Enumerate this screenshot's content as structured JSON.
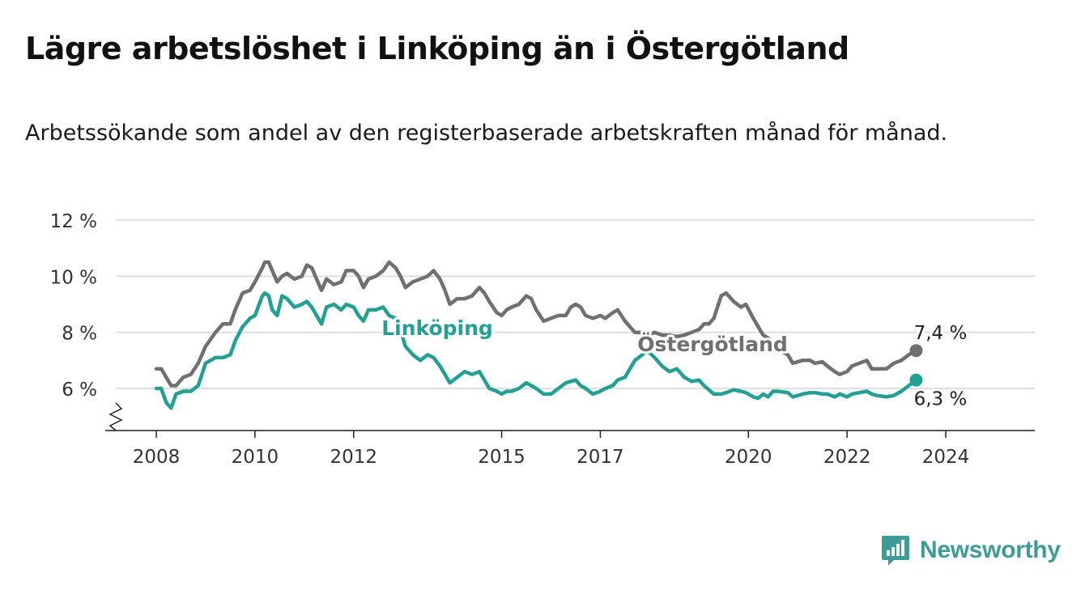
{
  "header": {
    "title": "Lägre arbetslöshet i Linköping än i Östergötland",
    "subtitle": "Arbetssökande som andel av den registerbaserade arbetskraften månad för månad."
  },
  "brand": {
    "name": "Newsworthy",
    "logo_icon": "bar-chart-speech-bubble-icon",
    "color": "#3f9b95"
  },
  "chart_data": {
    "type": "line",
    "x_unit": "year",
    "xlim": [
      2007.9,
      2025.0
    ],
    "ylim": [
      5,
      12
    ],
    "y_axis_break": true,
    "grid": true,
    "y_ticks": [
      {
        "value": 6,
        "label": "6 %"
      },
      {
        "value": 8,
        "label": "8 %"
      },
      {
        "value": 10,
        "label": "10 %"
      },
      {
        "value": 12,
        "label": "12 %"
      }
    ],
    "x_ticks": [
      {
        "value": 2008,
        "label": "2008"
      },
      {
        "value": 2010,
        "label": "2010"
      },
      {
        "value": 2012,
        "label": "2012"
      },
      {
        "value": 2015,
        "label": "2015"
      },
      {
        "value": 2017,
        "label": "2017"
      },
      {
        "value": 2020,
        "label": "2020"
      },
      {
        "value": 2022,
        "label": "2022"
      },
      {
        "value": 2024,
        "label": "2024"
      }
    ],
    "series": [
      {
        "name": "Östergötland",
        "color": "#707070",
        "end_value_label": "7,4 %",
        "points": [
          [
            2008.0,
            6.7
          ],
          [
            2008.1,
            6.7
          ],
          [
            2008.2,
            6.4
          ],
          [
            2008.3,
            6.1
          ],
          [
            2008.4,
            6.1
          ],
          [
            2008.55,
            6.4
          ],
          [
            2008.7,
            6.5
          ],
          [
            2008.85,
            6.9
          ],
          [
            2009.0,
            7.5
          ],
          [
            2009.2,
            8.0
          ],
          [
            2009.35,
            8.3
          ],
          [
            2009.5,
            8.3
          ],
          [
            2009.6,
            8.8
          ],
          [
            2009.75,
            9.4
          ],
          [
            2009.9,
            9.5
          ],
          [
            2010.0,
            9.8
          ],
          [
            2010.15,
            10.3
          ],
          [
            2010.2,
            10.5
          ],
          [
            2010.28,
            10.5
          ],
          [
            2010.35,
            10.2
          ],
          [
            2010.45,
            9.8
          ],
          [
            2010.55,
            10.0
          ],
          [
            2010.65,
            10.1
          ],
          [
            2010.8,
            9.9
          ],
          [
            2010.95,
            10.0
          ],
          [
            2011.05,
            10.4
          ],
          [
            2011.15,
            10.3
          ],
          [
            2011.25,
            9.9
          ],
          [
            2011.35,
            9.5
          ],
          [
            2011.45,
            9.9
          ],
          [
            2011.6,
            9.7
          ],
          [
            2011.75,
            9.8
          ],
          [
            2011.85,
            10.2
          ],
          [
            2012.0,
            10.2
          ],
          [
            2012.1,
            10.0
          ],
          [
            2012.2,
            9.6
          ],
          [
            2012.3,
            9.9
          ],
          [
            2012.45,
            10.0
          ],
          [
            2012.6,
            10.2
          ],
          [
            2012.72,
            10.5
          ],
          [
            2012.85,
            10.3
          ],
          [
            2012.95,
            10.0
          ],
          [
            2013.05,
            9.6
          ],
          [
            2013.2,
            9.8
          ],
          [
            2013.35,
            9.9
          ],
          [
            2013.5,
            10.0
          ],
          [
            2013.62,
            10.2
          ],
          [
            2013.75,
            9.9
          ],
          [
            2013.85,
            9.5
          ],
          [
            2013.95,
            9.0
          ],
          [
            2014.1,
            9.2
          ],
          [
            2014.25,
            9.2
          ],
          [
            2014.4,
            9.3
          ],
          [
            2014.55,
            9.6
          ],
          [
            2014.65,
            9.4
          ],
          [
            2014.75,
            9.1
          ],
          [
            2014.9,
            8.7
          ],
          [
            2015.0,
            8.6
          ],
          [
            2015.1,
            8.8
          ],
          [
            2015.2,
            8.9
          ],
          [
            2015.35,
            9.0
          ],
          [
            2015.5,
            9.3
          ],
          [
            2015.6,
            9.2
          ],
          [
            2015.7,
            8.8
          ],
          [
            2015.85,
            8.4
          ],
          [
            2016.0,
            8.5
          ],
          [
            2016.15,
            8.6
          ],
          [
            2016.3,
            8.6
          ],
          [
            2016.4,
            8.9
          ],
          [
            2016.5,
            9.0
          ],
          [
            2016.6,
            8.9
          ],
          [
            2016.7,
            8.6
          ],
          [
            2016.85,
            8.5
          ],
          [
            2017.0,
            8.6
          ],
          [
            2017.1,
            8.5
          ],
          [
            2017.25,
            8.7
          ],
          [
            2017.35,
            8.8
          ],
          [
            2017.5,
            8.4
          ],
          [
            2017.6,
            8.2
          ],
          [
            2017.7,
            8.0
          ],
          [
            2017.85,
            8.0
          ],
          [
            2017.95,
            7.9
          ],
          [
            2018.1,
            8.0
          ],
          [
            2018.25,
            7.9
          ],
          [
            2018.4,
            7.9
          ],
          [
            2018.55,
            7.85
          ],
          [
            2018.7,
            7.9
          ],
          [
            2018.85,
            8.0
          ],
          [
            2019.0,
            8.1
          ],
          [
            2019.1,
            8.3
          ],
          [
            2019.2,
            8.3
          ],
          [
            2019.3,
            8.5
          ],
          [
            2019.45,
            9.3
          ],
          [
            2019.55,
            9.4
          ],
          [
            2019.7,
            9.1
          ],
          [
            2019.85,
            8.9
          ],
          [
            2019.95,
            9.0
          ],
          [
            2020.1,
            8.5
          ],
          [
            2020.2,
            8.2
          ],
          [
            2020.3,
            7.9
          ],
          [
            2020.4,
            7.8
          ],
          [
            2020.5,
            7.6
          ],
          [
            2020.6,
            7.4
          ],
          [
            2020.8,
            7.2
          ],
          [
            2020.9,
            6.9
          ],
          [
            2021.1,
            7.0
          ],
          [
            2021.25,
            7.0
          ],
          [
            2021.35,
            6.9
          ],
          [
            2021.5,
            6.95
          ],
          [
            2021.6,
            6.8
          ],
          [
            2021.75,
            6.6
          ],
          [
            2021.85,
            6.5
          ],
          [
            2022.0,
            6.6
          ],
          [
            2022.1,
            6.8
          ],
          [
            2022.25,
            6.9
          ],
          [
            2022.4,
            7.0
          ],
          [
            2022.5,
            6.7
          ],
          [
            2022.6,
            6.7
          ],
          [
            2022.8,
            6.7
          ],
          [
            2022.95,
            6.9
          ],
          [
            2023.1,
            7.0
          ],
          [
            2023.25,
            7.2
          ],
          [
            2023.4,
            7.35
          ]
        ]
      },
      {
        "name": "Linköping",
        "color": "#23a094",
        "end_value_label": "6,3 %",
        "points": [
          [
            2008.0,
            6.0
          ],
          [
            2008.1,
            6.0
          ],
          [
            2008.2,
            5.5
          ],
          [
            2008.3,
            5.3
          ],
          [
            2008.4,
            5.8
          ],
          [
            2008.55,
            5.9
          ],
          [
            2008.7,
            5.9
          ],
          [
            2008.85,
            6.1
          ],
          [
            2009.0,
            6.9
          ],
          [
            2009.2,
            7.1
          ],
          [
            2009.35,
            7.1
          ],
          [
            2009.5,
            7.2
          ],
          [
            2009.6,
            7.7
          ],
          [
            2009.75,
            8.2
          ],
          [
            2009.9,
            8.5
          ],
          [
            2010.0,
            8.6
          ],
          [
            2010.15,
            9.3
          ],
          [
            2010.2,
            9.4
          ],
          [
            2010.28,
            9.3
          ],
          [
            2010.35,
            8.8
          ],
          [
            2010.45,
            8.6
          ],
          [
            2010.55,
            9.3
          ],
          [
            2010.65,
            9.2
          ],
          [
            2010.8,
            8.9
          ],
          [
            2010.95,
            9.0
          ],
          [
            2011.05,
            9.1
          ],
          [
            2011.15,
            8.9
          ],
          [
            2011.25,
            8.6
          ],
          [
            2011.35,
            8.3
          ],
          [
            2011.45,
            8.9
          ],
          [
            2011.6,
            9.0
          ],
          [
            2011.75,
            8.8
          ],
          [
            2011.85,
            9.0
          ],
          [
            2012.0,
            8.9
          ],
          [
            2012.1,
            8.6
          ],
          [
            2012.2,
            8.4
          ],
          [
            2012.3,
            8.8
          ],
          [
            2012.45,
            8.8
          ],
          [
            2012.6,
            8.9
          ],
          [
            2012.72,
            8.6
          ],
          [
            2012.85,
            8.5
          ],
          [
            2012.95,
            8.1
          ],
          [
            2013.05,
            7.5
          ],
          [
            2013.2,
            7.2
          ],
          [
            2013.35,
            7.0
          ],
          [
            2013.5,
            7.2
          ],
          [
            2013.62,
            7.1
          ],
          [
            2013.75,
            6.8
          ],
          [
            2013.85,
            6.5
          ],
          [
            2013.95,
            6.2
          ],
          [
            2014.1,
            6.4
          ],
          [
            2014.25,
            6.6
          ],
          [
            2014.4,
            6.5
          ],
          [
            2014.55,
            6.6
          ],
          [
            2014.65,
            6.3
          ],
          [
            2014.75,
            6.0
          ],
          [
            2014.9,
            5.9
          ],
          [
            2015.0,
            5.8
          ],
          [
            2015.1,
            5.9
          ],
          [
            2015.2,
            5.9
          ],
          [
            2015.35,
            6.0
          ],
          [
            2015.5,
            6.2
          ],
          [
            2015.6,
            6.1
          ],
          [
            2015.7,
            6.0
          ],
          [
            2015.85,
            5.8
          ],
          [
            2016.0,
            5.8
          ],
          [
            2016.15,
            6.0
          ],
          [
            2016.3,
            6.2
          ],
          [
            2016.4,
            6.25
          ],
          [
            2016.5,
            6.3
          ],
          [
            2016.6,
            6.1
          ],
          [
            2016.7,
            6.0
          ],
          [
            2016.85,
            5.8
          ],
          [
            2017.0,
            5.9
          ],
          [
            2017.1,
            6.0
          ],
          [
            2017.25,
            6.1
          ],
          [
            2017.35,
            6.3
          ],
          [
            2017.5,
            6.4
          ],
          [
            2017.6,
            6.7
          ],
          [
            2017.7,
            7.0
          ],
          [
            2017.85,
            7.2
          ],
          [
            2017.95,
            7.35
          ],
          [
            2018.1,
            7.1
          ],
          [
            2018.25,
            6.8
          ],
          [
            2018.4,
            6.6
          ],
          [
            2018.55,
            6.7
          ],
          [
            2018.7,
            6.4
          ],
          [
            2018.85,
            6.25
          ],
          [
            2019.0,
            6.3
          ],
          [
            2019.1,
            6.1
          ],
          [
            2019.2,
            5.95
          ],
          [
            2019.3,
            5.8
          ],
          [
            2019.45,
            5.8
          ],
          [
            2019.55,
            5.85
          ],
          [
            2019.7,
            5.95
          ],
          [
            2019.85,
            5.9
          ],
          [
            2019.95,
            5.85
          ],
          [
            2020.1,
            5.7
          ],
          [
            2020.2,
            5.65
          ],
          [
            2020.3,
            5.8
          ],
          [
            2020.4,
            5.7
          ],
          [
            2020.5,
            5.9
          ],
          [
            2020.6,
            5.9
          ],
          [
            2020.8,
            5.85
          ],
          [
            2020.9,
            5.7
          ],
          [
            2021.1,
            5.8
          ],
          [
            2021.25,
            5.85
          ],
          [
            2021.35,
            5.85
          ],
          [
            2021.5,
            5.8
          ],
          [
            2021.6,
            5.8
          ],
          [
            2021.75,
            5.7
          ],
          [
            2021.85,
            5.8
          ],
          [
            2022.0,
            5.7
          ],
          [
            2022.1,
            5.8
          ],
          [
            2022.25,
            5.85
          ],
          [
            2022.4,
            5.9
          ],
          [
            2022.5,
            5.8
          ],
          [
            2022.6,
            5.75
          ],
          [
            2022.8,
            5.7
          ],
          [
            2022.95,
            5.75
          ],
          [
            2023.1,
            5.9
          ],
          [
            2023.25,
            6.1
          ],
          [
            2023.4,
            6.3
          ]
        ]
      }
    ]
  }
}
